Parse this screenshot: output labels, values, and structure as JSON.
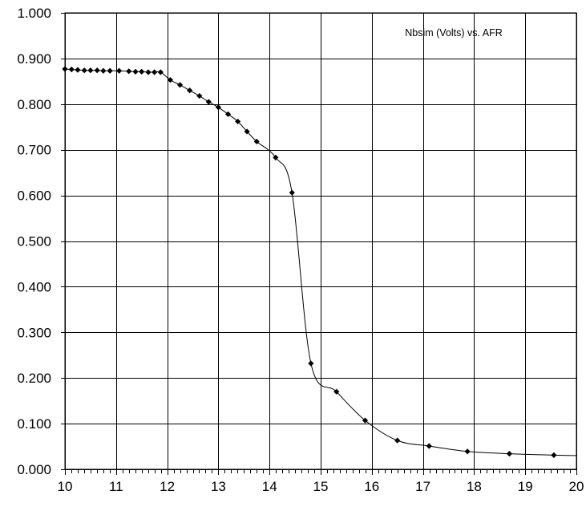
{
  "chart_data": {
    "type": "line",
    "title": "Nbsim (Volts)  vs. AFR",
    "xlabel": "",
    "ylabel": "",
    "xlim": [
      10,
      20
    ],
    "ylim": [
      0.0,
      1.0
    ],
    "x_ticks": [
      10,
      11,
      12,
      13,
      14,
      15,
      16,
      17,
      18,
      19,
      20
    ],
    "y_ticks": [
      0.0,
      0.1,
      0.2,
      0.3,
      0.4,
      0.5,
      0.6,
      0.7,
      0.8,
      0.9,
      1.0
    ],
    "x_tick_labels": [
      "10",
      "11",
      "12",
      "13",
      "14",
      "15",
      "16",
      "17",
      "18",
      "19",
      "20"
    ],
    "y_tick_labels": [
      "0.000",
      "0.100",
      "0.200",
      "0.300",
      "0.400",
      "0.500",
      "0.600",
      "0.700",
      "0.800",
      "0.900",
      "1.000"
    ],
    "grid": true,
    "legend": "none",
    "series": [
      {
        "marker": "diamond",
        "color": "#000000",
        "points": [
          [
            10.0,
            0.877
          ],
          [
            10.13,
            0.876
          ],
          [
            10.25,
            0.875
          ],
          [
            10.38,
            0.874
          ],
          [
            10.5,
            0.874
          ],
          [
            10.63,
            0.874
          ],
          [
            10.75,
            0.873
          ],
          [
            10.88,
            0.873
          ],
          [
            11.06,
            0.873
          ],
          [
            11.25,
            0.872
          ],
          [
            11.38,
            0.871
          ],
          [
            11.5,
            0.871
          ],
          [
            11.63,
            0.87
          ],
          [
            11.75,
            0.87
          ],
          [
            11.87,
            0.87
          ],
          [
            12.06,
            0.853
          ],
          [
            12.25,
            0.842
          ],
          [
            12.44,
            0.83
          ],
          [
            12.63,
            0.818
          ],
          [
            12.81,
            0.805
          ],
          [
            13.0,
            0.793
          ],
          [
            13.19,
            0.778
          ],
          [
            13.38,
            0.762
          ],
          [
            13.56,
            0.74
          ],
          [
            13.75,
            0.718
          ],
          [
            14.12,
            0.683
          ],
          [
            14.44,
            0.606
          ],
          [
            14.81,
            0.232
          ],
          [
            15.31,
            0.17
          ],
          [
            15.87,
            0.107
          ],
          [
            16.5,
            0.063
          ],
          [
            17.12,
            0.051
          ],
          [
            17.87,
            0.039
          ],
          [
            18.69,
            0.034
          ],
          [
            19.56,
            0.031
          ]
        ],
        "curve_end": [
          20.0,
          0.03
        ]
      }
    ]
  }
}
